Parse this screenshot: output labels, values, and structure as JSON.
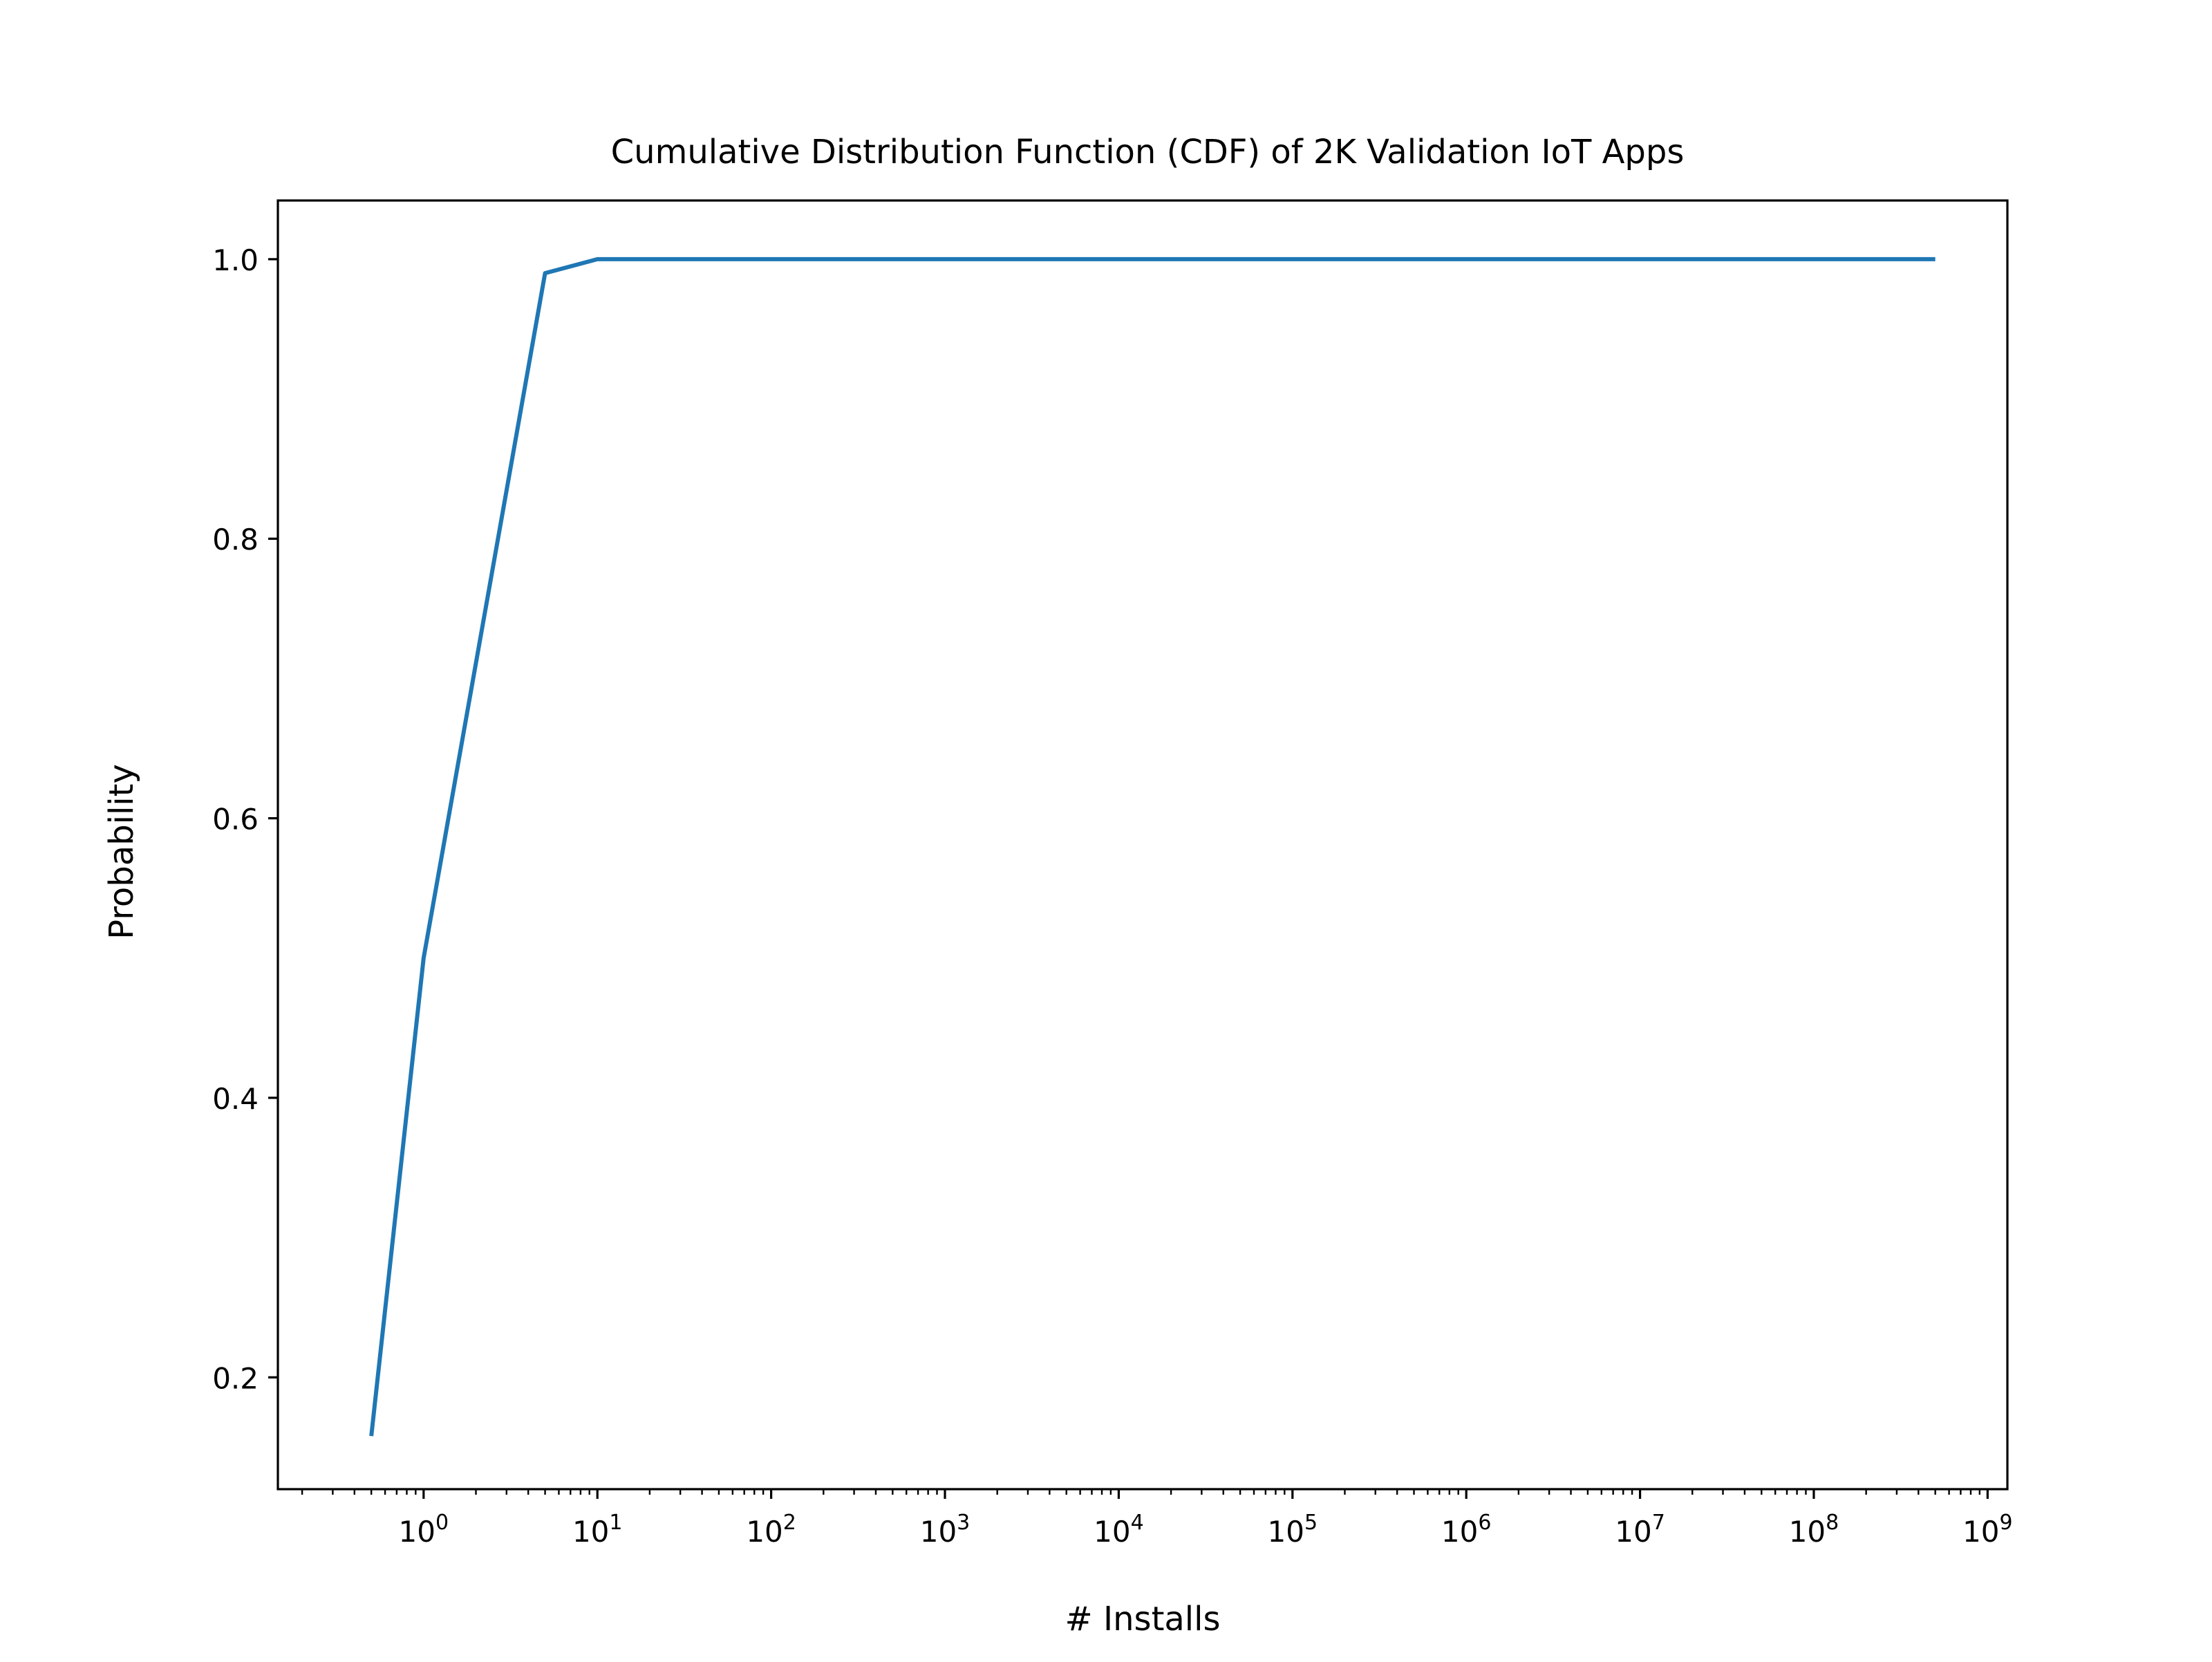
{
  "chart_data": {
    "type": "line",
    "title": "Cumulative Distribution Function (CDF) of 2K Validation IoT Apps",
    "xlabel": "# Installs",
    "ylabel": "Probability",
    "x_scale": "log",
    "xlim": [
      0.145,
      1300000000
    ],
    "ylim": [
      0.12,
      1.042
    ],
    "grid": false,
    "x_ticks": [
      {
        "value": 1,
        "base": "10",
        "exp": "0"
      },
      {
        "value": 10,
        "base": "10",
        "exp": "1"
      },
      {
        "value": 100,
        "base": "10",
        "exp": "2"
      },
      {
        "value": 1000,
        "base": "10",
        "exp": "3"
      },
      {
        "value": 10000,
        "base": "10",
        "exp": "4"
      },
      {
        "value": 100000,
        "base": "10",
        "exp": "5"
      },
      {
        "value": 1000000,
        "base": "10",
        "exp": "6"
      },
      {
        "value": 10000000,
        "base": "10",
        "exp": "7"
      },
      {
        "value": 100000000,
        "base": "10",
        "exp": "8"
      },
      {
        "value": 1000000000,
        "base": "10",
        "exp": "9"
      }
    ],
    "y_ticks": [
      {
        "value": 0.2,
        "label": "0.2"
      },
      {
        "value": 0.4,
        "label": "0.4"
      },
      {
        "value": 0.6,
        "label": "0.6"
      },
      {
        "value": 0.8,
        "label": "0.8"
      },
      {
        "value": 1.0,
        "label": "1.0"
      }
    ],
    "series": [
      {
        "color": "#1f77b4",
        "x": [
          0.5,
          1,
          5,
          10,
          50,
          100,
          500,
          1000,
          5000,
          10000,
          50000,
          100000,
          500000,
          1000000,
          5000000,
          10000000,
          50000000,
          100000000,
          500000000
        ],
        "y": [
          0.158,
          0.5,
          0.99,
          1.0,
          1.0,
          1.0,
          1.0,
          1.0,
          1.0,
          1.0,
          1.0,
          1.0,
          1.0,
          1.0,
          1.0,
          1.0,
          1.0,
          1.0,
          1.0
        ]
      }
    ]
  }
}
